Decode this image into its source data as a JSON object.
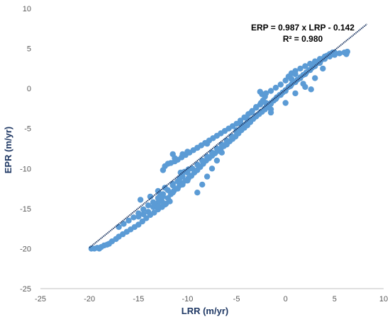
{
  "chart_data": {
    "type": "scatter",
    "title": "",
    "xlabel": "LRR (m/yr)",
    "ylabel": "EPR (m/yr)",
    "xlim": [
      -25,
      10
    ],
    "ylim": [
      -25,
      10
    ],
    "xticks": [
      -25,
      -20,
      -15,
      -10,
      -5,
      0,
      5,
      10
    ],
    "yticks": [
      -25,
      -20,
      -15,
      -10,
      -5,
      0,
      5,
      10
    ],
    "grid": false,
    "legend": "none",
    "annotations": {
      "equation": "ERP = 0.987 x LRP - 0.142",
      "r_squared": "R² = 0.980"
    },
    "colors": {
      "points": "#5b9bd5",
      "trendline": "#1f3864",
      "axis_title": "#1f3864"
    },
    "trendline": {
      "slope": 0.987,
      "intercept": -0.142,
      "x_range": [
        -20,
        8.3
      ]
    },
    "series": [
      {
        "points": [
          [
            -19.8,
            -20
          ],
          [
            -19.5,
            -20
          ],
          [
            -19.2,
            -19.9
          ],
          [
            -19,
            -20
          ],
          [
            -18.8,
            -19.8
          ],
          [
            -18.5,
            -19.6
          ],
          [
            -18.2,
            -19.5
          ],
          [
            -18,
            -19.4
          ],
          [
            -17.7,
            -19.1
          ],
          [
            -17.3,
            -18.8
          ],
          [
            -17,
            -18.5
          ],
          [
            -16.6,
            -18.2
          ],
          [
            -16.2,
            -17.9
          ],
          [
            -15.8,
            -17.6
          ],
          [
            -15.4,
            -17.3
          ],
          [
            -15,
            -17
          ],
          [
            -14.6,
            -16.6
          ],
          [
            -14.2,
            -16.2
          ],
          [
            -13.8,
            -15.8
          ],
          [
            -13.4,
            -15.5
          ],
          [
            -13,
            -15.1
          ],
          [
            -12.6,
            -14.8
          ],
          [
            -12.2,
            -14.4
          ],
          [
            -11.8,
            -14.1
          ],
          [
            -12.6,
            -14.1
          ],
          [
            -12.3,
            -14.5
          ],
          [
            -12,
            -13.7
          ],
          [
            -11.7,
            -13.2
          ],
          [
            -11.4,
            -12.8
          ],
          [
            -11.1,
            -12.5
          ],
          [
            -10.8,
            -12.1
          ],
          [
            -10.5,
            -11.8
          ],
          [
            -10.2,
            -11.5
          ],
          [
            -9.9,
            -11.2
          ],
          [
            -9.6,
            -10.9
          ],
          [
            -9.3,
            -10.5
          ],
          [
            -9,
            -10.2
          ],
          [
            -8.7,
            -9.8
          ],
          [
            -8.4,
            -9.4
          ],
          [
            -8.1,
            -9
          ],
          [
            -7.8,
            -8.7
          ],
          [
            -7.5,
            -8.4
          ],
          [
            -7.2,
            -8.1
          ],
          [
            -6.9,
            -7.8
          ],
          [
            -6.6,
            -7.5
          ],
          [
            -6.3,
            -7.2
          ],
          [
            -6,
            -6.9
          ],
          [
            -5.7,
            -6.6
          ],
          [
            -5.4,
            -6.3
          ],
          [
            -5.1,
            -6
          ],
          [
            -4.8,
            -5.6
          ],
          [
            -4.5,
            -5.2
          ],
          [
            -4.2,
            -4.9
          ],
          [
            -3.9,
            -4.6
          ],
          [
            -3.6,
            -4.2
          ],
          [
            -3.3,
            -3.8
          ],
          [
            -3,
            -3.5
          ],
          [
            -2.7,
            -3.2
          ],
          [
            -2.4,
            -2.9
          ],
          [
            -2.1,
            -2.6
          ],
          [
            -1.8,
            -2.2
          ],
          [
            -1.5,
            -1.8
          ],
          [
            -1.2,
            -1.5
          ],
          [
            -0.9,
            -1.1
          ],
          [
            -0.6,
            -0.8
          ],
          [
            -0.3,
            -0.5
          ],
          [
            0,
            -0.2
          ],
          [
            0.3,
            0.2
          ],
          [
            0.6,
            0.5
          ],
          [
            0.9,
            0.8
          ],
          [
            1.2,
            1.1
          ],
          [
            1.5,
            1.4
          ],
          [
            1.8,
            1.7
          ],
          [
            2.1,
            2
          ],
          [
            2.4,
            2.3
          ],
          [
            2.7,
            2.6
          ],
          [
            3,
            2.9
          ],
          [
            3.3,
            3.2
          ],
          [
            3.6,
            3.5
          ],
          [
            3.9,
            3.8
          ],
          [
            4.2,
            4.1
          ],
          [
            4.5,
            4.3
          ],
          [
            4.8,
            4.5
          ],
          [
            -17,
            -17.3
          ],
          [
            -16.5,
            -16.9
          ],
          [
            -16,
            -16.5
          ],
          [
            -15.5,
            -16.1
          ],
          [
            -15,
            -15.6
          ],
          [
            -14.5,
            -15.1
          ],
          [
            -14,
            -14.6
          ],
          [
            -13.5,
            -14.2
          ],
          [
            -13,
            -13.7
          ],
          [
            -12.5,
            -13.2
          ],
          [
            -12,
            -12.7
          ],
          [
            -11.5,
            -12.1
          ],
          [
            -11,
            -11.6
          ],
          [
            -10.5,
            -11
          ],
          [
            -10,
            -10.5
          ],
          [
            -9.5,
            -10
          ],
          [
            -9,
            -9.5
          ],
          [
            -8.5,
            -9
          ],
          [
            -8,
            -8.5
          ],
          [
            -7.5,
            -8
          ],
          [
            -7,
            -7.5
          ],
          [
            -6.5,
            -7
          ],
          [
            -6,
            -6.5
          ],
          [
            -5.5,
            -6
          ],
          [
            -5,
            -5.4
          ],
          [
            -4.5,
            -4.9
          ],
          [
            -4,
            -4.4
          ],
          [
            -3.5,
            -3.9
          ],
          [
            -3,
            -3.4
          ],
          [
            -2.5,
            -2.9
          ],
          [
            -2,
            -2.4
          ],
          [
            -1.5,
            -1.9
          ],
          [
            -1,
            -1.3
          ],
          [
            -0.5,
            -0.8
          ],
          [
            0,
            -0.3
          ],
          [
            0.5,
            0.3
          ],
          [
            1,
            0.8
          ],
          [
            1.5,
            1.3
          ],
          [
            2,
            1.8
          ],
          [
            2.5,
            2.3
          ],
          [
            3,
            2.8
          ],
          [
            3.5,
            3.2
          ],
          [
            4,
            3.7
          ],
          [
            4.5,
            4
          ],
          [
            5,
            4.2
          ],
          [
            5.5,
            4.4
          ],
          [
            6,
            4.5
          ],
          [
            6.3,
            4.6
          ],
          [
            6.2,
            4.3
          ],
          [
            -12.5,
            -10.2
          ],
          [
            -12.3,
            -9.7
          ],
          [
            -12,
            -9.4
          ],
          [
            -11.7,
            -9.3
          ],
          [
            -11.3,
            -9.1
          ],
          [
            -11,
            -8.9
          ],
          [
            -10.6,
            -8.6
          ],
          [
            -10.2,
            -8.3
          ],
          [
            -9.8,
            -8
          ],
          [
            -9.4,
            -7.7
          ],
          [
            -9,
            -7.4
          ],
          [
            -8.6,
            -7.1
          ],
          [
            -8.2,
            -6.8
          ],
          [
            -7.8,
            -6.5
          ],
          [
            -7.4,
            -6.2
          ],
          [
            -7,
            -5.9
          ],
          [
            -6.6,
            -5.6
          ],
          [
            -6.2,
            -5.3
          ],
          [
            -5.8,
            -5
          ],
          [
            -5.4,
            -4.7
          ],
          [
            -5,
            -4.4
          ],
          [
            -4.6,
            -4
          ],
          [
            -4.2,
            -3.6
          ],
          [
            -3.8,
            -3.2
          ],
          [
            -3.4,
            -2.8
          ],
          [
            -3,
            -2.4
          ],
          [
            -2.6,
            -2
          ],
          [
            -2.3,
            -1.5
          ],
          [
            -2.1,
            -1
          ],
          [
            -2.4,
            -0.7
          ],
          [
            -2.6,
            -0.4
          ],
          [
            -2,
            -0.6
          ],
          [
            -1.5,
            -0.3
          ],
          [
            -1,
            0.1
          ],
          [
            -0.5,
            0.5
          ],
          [
            0,
            1
          ],
          [
            0.3,
            1.5
          ],
          [
            0.6,
            1.9
          ],
          [
            1,
            2.2
          ],
          [
            1.5,
            2.5
          ],
          [
            2,
            2.8
          ],
          [
            2.5,
            3.1
          ],
          [
            3,
            3.4
          ],
          [
            3.5,
            3.7
          ],
          [
            4,
            4
          ],
          [
            4.5,
            4.3
          ],
          [
            5,
            4.5
          ],
          [
            -14.8,
            -13.9
          ],
          [
            -13.8,
            -13.5
          ],
          [
            -13,
            -12.8
          ],
          [
            -12.3,
            -12.4
          ],
          [
            -11.5,
            -11.9
          ],
          [
            -10.8,
            -11.2
          ],
          [
            -10.5,
            -10.5
          ],
          [
            -15,
            -16
          ],
          [
            -14.5,
            -15.7
          ],
          [
            -14,
            -15.4
          ],
          [
            -13.5,
            -14.8
          ],
          [
            -13,
            -14.3
          ],
          [
            -11.5,
            -13
          ],
          [
            -11,
            -12.5
          ],
          [
            -10.5,
            -12
          ],
          [
            -10,
            -11.5
          ],
          [
            -11.5,
            -8.2
          ],
          [
            -11.3,
            -8.7
          ],
          [
            -10.5,
            -8.2
          ],
          [
            -10,
            -7.9
          ],
          [
            -9,
            -7.4
          ],
          [
            -8,
            -6.9
          ],
          [
            -9,
            -13
          ],
          [
            -8.5,
            -12
          ],
          [
            -8,
            -11
          ],
          [
            -7.5,
            -10
          ],
          [
            -7,
            -9
          ],
          [
            -6.5,
            -8
          ],
          [
            -6,
            -7
          ],
          [
            -5.5,
            -6
          ],
          [
            -5,
            -5.2
          ],
          [
            -4.5,
            -4.5
          ],
          [
            -4,
            -3.7
          ],
          [
            -3.5,
            -3
          ],
          [
            -3,
            -2.3
          ],
          [
            -2.5,
            -1.8
          ],
          [
            -12.8,
            -13.2
          ],
          [
            -12.5,
            -13.5
          ],
          [
            -13.3,
            -14.5
          ],
          [
            -13,
            -14.8
          ],
          [
            -10.7,
            -10.5
          ],
          [
            -10.3,
            -10.4
          ],
          [
            -9.9,
            -10.1
          ],
          [
            -2,
            -1.8
          ],
          [
            -1.8,
            -2.3
          ],
          [
            -1.5,
            -2.6
          ],
          [
            -1.5,
            -3
          ],
          [
            -2.1,
            -2.5
          ],
          [
            0,
            -1.8
          ],
          [
            1,
            -0.6
          ],
          [
            2,
            0.2
          ],
          [
            2.6,
            -0.1
          ],
          [
            1.8,
            0.6
          ],
          [
            3,
            1.3
          ],
          [
            3.8,
            2.5
          ],
          [
            1,
            1.8
          ],
          [
            0.6,
            1.2
          ]
        ]
      }
    ]
  }
}
